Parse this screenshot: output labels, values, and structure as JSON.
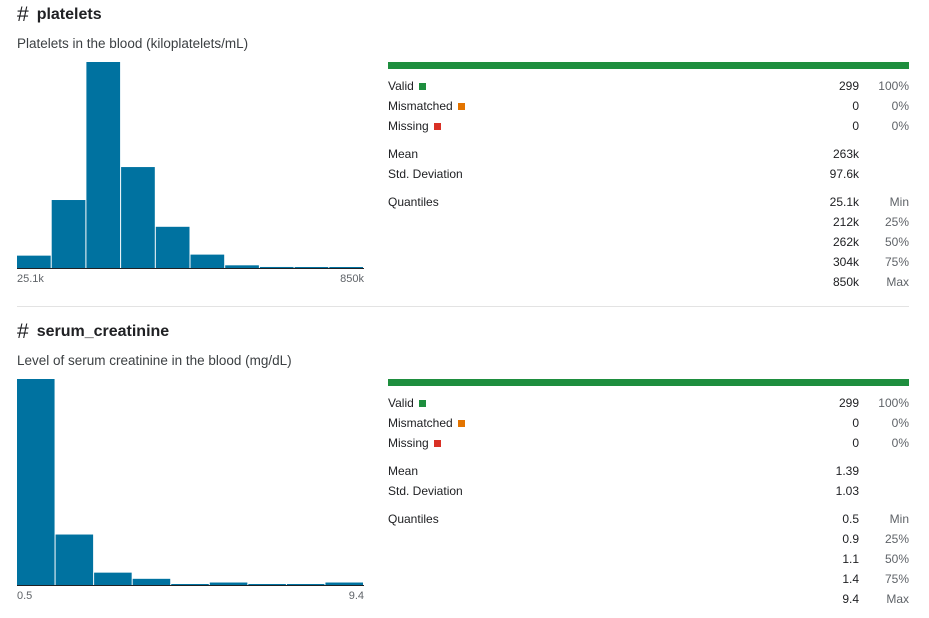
{
  "colors": {
    "bar": "#0072a0",
    "valid": "#1e8e3e",
    "mismatched": "#e37400",
    "missing": "#d93025"
  },
  "columns": [
    {
      "hash": "#",
      "name": "platelets",
      "description": "Platelets in the blood (kiloplatelets/mL)",
      "axis_min": "25.1k",
      "axis_max": "850k",
      "histogram": [
        0.06,
        0.33,
        1.0,
        0.49,
        0.2,
        0.065,
        0.013,
        0.005,
        0.004,
        0.004
      ],
      "valid_label": "Valid",
      "valid_value": "299",
      "valid_pct": "100%",
      "mismatched_label": "Mismatched",
      "mismatched_value": "0",
      "mismatched_pct": "0%",
      "missing_label": "Missing",
      "missing_value": "0",
      "missing_pct": "0%",
      "mean_label": "Mean",
      "mean_value": "263k",
      "std_label": "Std. Deviation",
      "std_value": "97.6k",
      "quantiles_label": "Quantiles",
      "quantiles": [
        {
          "value": "25.1k",
          "label": "Min"
        },
        {
          "value": "212k",
          "label": "25%"
        },
        {
          "value": "262k",
          "label": "50%"
        },
        {
          "value": "304k",
          "label": "75%"
        },
        {
          "value": "850k",
          "label": "Max"
        }
      ]
    },
    {
      "hash": "#",
      "name": "serum_creatinine",
      "description": "Level of serum creatinine in the blood (mg/dL)",
      "axis_min": "0.5",
      "axis_max": "9.4",
      "histogram": [
        1.0,
        0.245,
        0.06,
        0.03,
        0.004,
        0.012,
        0.004,
        0.004,
        0.012
      ],
      "valid_label": "Valid",
      "valid_value": "299",
      "valid_pct": "100%",
      "mismatched_label": "Mismatched",
      "mismatched_value": "0",
      "mismatched_pct": "0%",
      "missing_label": "Missing",
      "missing_value": "0",
      "missing_pct": "0%",
      "mean_label": "Mean",
      "mean_value": "1.39",
      "std_label": "Std. Deviation",
      "std_value": "1.03",
      "quantiles_label": "Quantiles",
      "quantiles": [
        {
          "value": "0.5",
          "label": "Min"
        },
        {
          "value": "0.9",
          "label": "25%"
        },
        {
          "value": "1.1",
          "label": "50%"
        },
        {
          "value": "1.4",
          "label": "75%"
        },
        {
          "value": "9.4",
          "label": "Max"
        }
      ]
    }
  ]
}
